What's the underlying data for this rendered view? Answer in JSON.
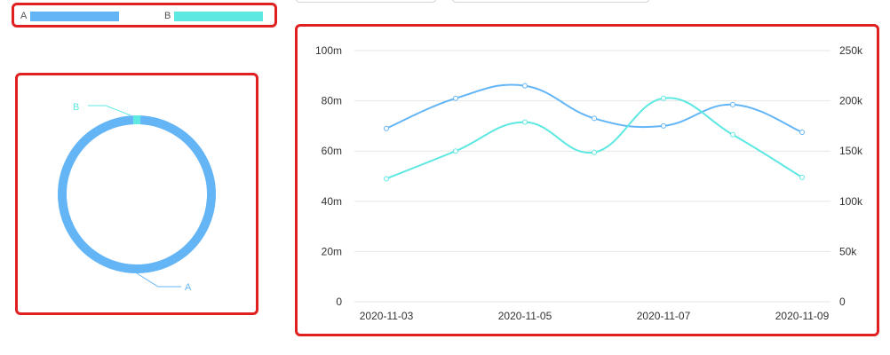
{
  "colors": {
    "series_a": "#64b5f6",
    "series_b": "#5ee8e2",
    "frame": "#e02020",
    "grid": "#e6e6e6",
    "axis_text": "#333333"
  },
  "legend": {
    "items": [
      {
        "label": "A",
        "color": "#64b5f6"
      },
      {
        "label": "B",
        "color": "#5ee8e2"
      }
    ]
  },
  "chart_data": [
    {
      "type": "pie",
      "variant": "donut",
      "slices": [
        {
          "label": "A",
          "value": 98.5,
          "color": "#64b5f6"
        },
        {
          "label": "B",
          "value": 1.5,
          "color": "#5ee8e2"
        }
      ]
    },
    {
      "type": "line",
      "smooth": true,
      "x": [
        "2020-11-03",
        "2020-11-04",
        "2020-11-05",
        "2020-11-06",
        "2020-11-07",
        "2020-11-08",
        "2020-11-09"
      ],
      "x_tick_labels": [
        "2020-11-03",
        "2020-11-05",
        "2020-11-07",
        "2020-11-09"
      ],
      "y_left": {
        "ticks": [
          "0",
          "20m",
          "40m",
          "60m",
          "80m",
          "100m"
        ],
        "range": [
          0,
          100000000
        ]
      },
      "y_right": {
        "ticks": [
          "0",
          "50k",
          "100k",
          "150k",
          "200k",
          "250k"
        ],
        "range": [
          0,
          250000
        ]
      },
      "series": [
        {
          "name": "A",
          "axis": "left",
          "color": "#64b5f6",
          "values": [
            69000000,
            81000000,
            86000000,
            73000000,
            70000000,
            78500000,
            67500000
          ]
        },
        {
          "name": "B",
          "axis": "left",
          "color": "#5ee8e2",
          "values": [
            49000000,
            60000000,
            71500000,
            59500000,
            81000000,
            66500000,
            49500000
          ]
        }
      ],
      "grid": true
    }
  ]
}
